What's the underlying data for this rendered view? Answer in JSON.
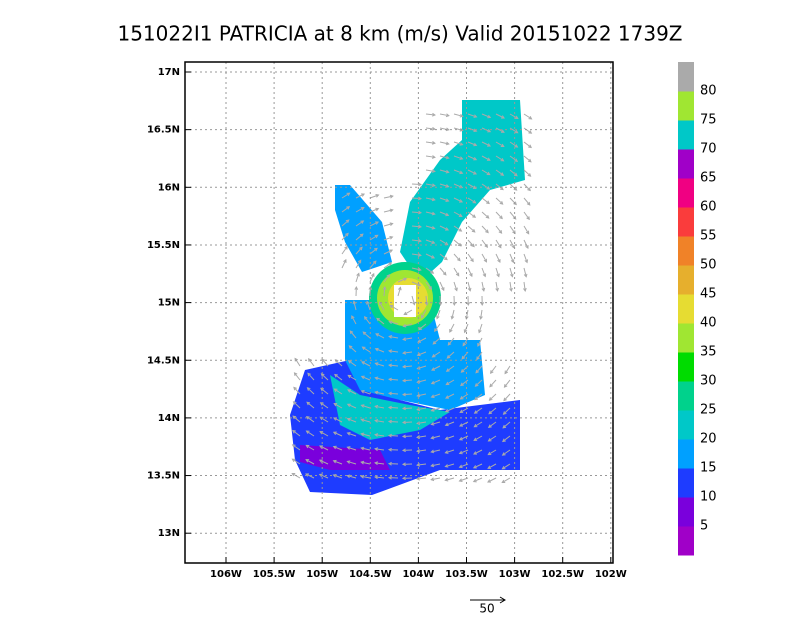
{
  "title": "151022I1 PATRICIA at 8 km (m/s) Valid 20151022 1739Z",
  "lon_ticks": [
    {
      "value": 106,
      "label": "106W"
    },
    {
      "value": 105.5,
      "label": "105.5W"
    },
    {
      "value": 105,
      "label": "105W"
    },
    {
      "value": 104.5,
      "label": "104.5W"
    },
    {
      "value": 104,
      "label": "104W"
    },
    {
      "value": 103.5,
      "label": "103.5W"
    },
    {
      "value": 103,
      "label": "103W"
    },
    {
      "value": 102.5,
      "label": "102.5W"
    },
    {
      "value": 102,
      "label": "102W"
    }
  ],
  "lat_ticks": [
    {
      "value": 17,
      "label": "17N"
    },
    {
      "value": 16.5,
      "label": "16.5N"
    },
    {
      "value": 16,
      "label": "16N"
    },
    {
      "value": 15.5,
      "label": "15.5N"
    },
    {
      "value": 15,
      "label": "15N"
    },
    {
      "value": 14.5,
      "label": "14.5N"
    },
    {
      "value": 14,
      "label": "14N"
    },
    {
      "value": 13.5,
      "label": "13.5N"
    },
    {
      "value": 13,
      "label": "13N"
    }
  ],
  "colorbar": {
    "levels": [
      5,
      10,
      15,
      20,
      25,
      30,
      35,
      40,
      45,
      50,
      55,
      60,
      65,
      70,
      75,
      80
    ],
    "colors": [
      "#a000c8",
      "#7a00dc",
      "#1e3cff",
      "#00a0ff",
      "#00c8c8",
      "#00d28c",
      "#00dc00",
      "#a0e632",
      "#e6dc32",
      "#e6af2d",
      "#f08228",
      "#fa3c3c",
      "#f00082",
      "#a000c8",
      "#00c8c8",
      "#a0e632",
      "#aaaaaa"
    ]
  },
  "reference_vector": 50
}
